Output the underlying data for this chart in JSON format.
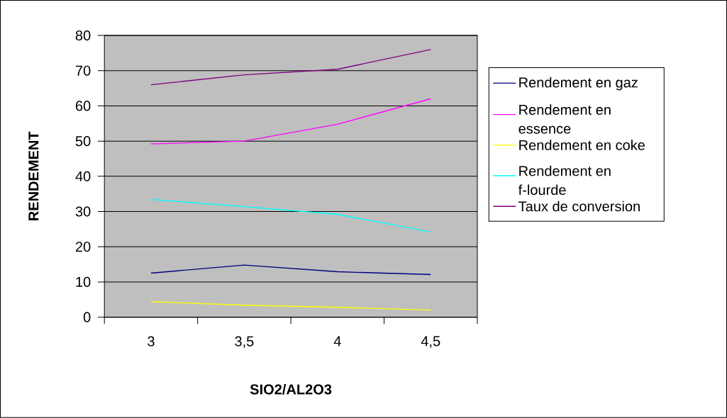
{
  "chart_data": {
    "type": "line",
    "xlabel": "SIO2/AL2O3",
    "ylabel": "RENDEMENT",
    "categories": [
      "3",
      "3,5",
      "4",
      "4,5"
    ],
    "series": [
      {
        "name": "Rendement en gaz",
        "color": "#000080",
        "values": [
          12.5,
          14.8,
          12.9,
          12.1
        ]
      },
      {
        "name": "Rendement en essence",
        "color": "#ff00ff",
        "values": [
          49.2,
          50,
          54.8,
          62
        ]
      },
      {
        "name": "Rendement en coke",
        "color": "#ffff00",
        "values": [
          4.4,
          3.4,
          2.8,
          2
        ]
      },
      {
        "name": "Rendement en f-lourde",
        "color": "#00ffff",
        "values": [
          33.4,
          31.4,
          29.2,
          24.2
        ]
      },
      {
        "name": "Taux de conversion",
        "color": "#800080",
        "values": [
          66,
          68.8,
          70.4,
          76
        ]
      }
    ],
    "ylim": [
      0,
      80
    ],
    "yticks": [
      0,
      10,
      20,
      30,
      40,
      50,
      60,
      70,
      80
    ],
    "grid": "y",
    "legend": "right"
  }
}
